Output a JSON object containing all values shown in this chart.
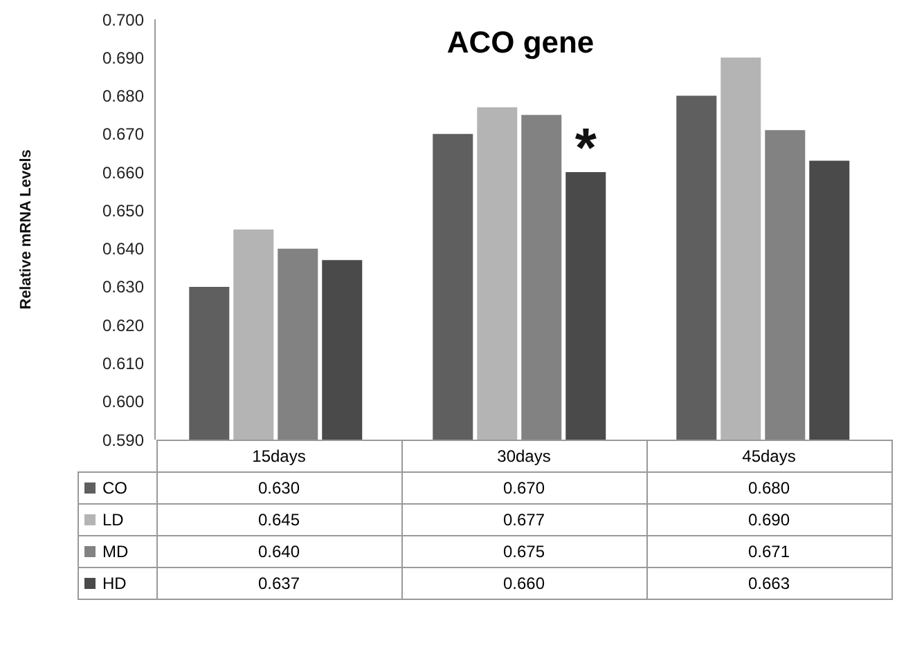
{
  "chart_data": {
    "type": "bar",
    "title": "ACO gene",
    "ylabel": "Relative mRNA Levels",
    "categories": [
      "15days",
      "30days",
      "45days"
    ],
    "series": [
      {
        "name": "CO",
        "color": "#5f5f5f",
        "values": [
          0.63,
          0.67,
          0.68
        ],
        "value_labels": [
          "0.630",
          "0.670",
          "0.680"
        ]
      },
      {
        "name": "LD",
        "color": "#b4b4b4",
        "values": [
          0.645,
          0.677,
          0.69
        ],
        "value_labels": [
          "0.645",
          "0.677",
          "0.690"
        ]
      },
      {
        "name": "MD",
        "color": "#828282",
        "values": [
          0.64,
          0.675,
          0.671
        ],
        "value_labels": [
          "0.640",
          "0.675",
          "0.671"
        ]
      },
      {
        "name": "HD",
        "color": "#4a4a4a",
        "values": [
          0.637,
          0.66,
          0.663
        ],
        "value_labels": [
          "0.637",
          "0.660",
          "0.663"
        ]
      }
    ],
    "ylim": [
      0.59,
      0.7
    ],
    "yticks": [
      {
        "value": 0.59,
        "label": "0.590"
      },
      {
        "value": 0.6,
        "label": "0.600"
      },
      {
        "value": 0.61,
        "label": "0.610"
      },
      {
        "value": 0.62,
        "label": "0.620"
      },
      {
        "value": 0.63,
        "label": "0.630"
      },
      {
        "value": 0.64,
        "label": "0.640"
      },
      {
        "value": 0.65,
        "label": "0.650"
      },
      {
        "value": 0.66,
        "label": "0.660"
      },
      {
        "value": 0.67,
        "label": "0.670"
      },
      {
        "value": 0.68,
        "label": "0.680"
      },
      {
        "value": 0.69,
        "label": "0.690"
      },
      {
        "value": 0.7,
        "label": "0.700"
      }
    ],
    "annotations": [
      {
        "text": "*",
        "x": "30days",
        "y": 0.66
      }
    ],
    "legend": "bottom",
    "grid": false
  }
}
